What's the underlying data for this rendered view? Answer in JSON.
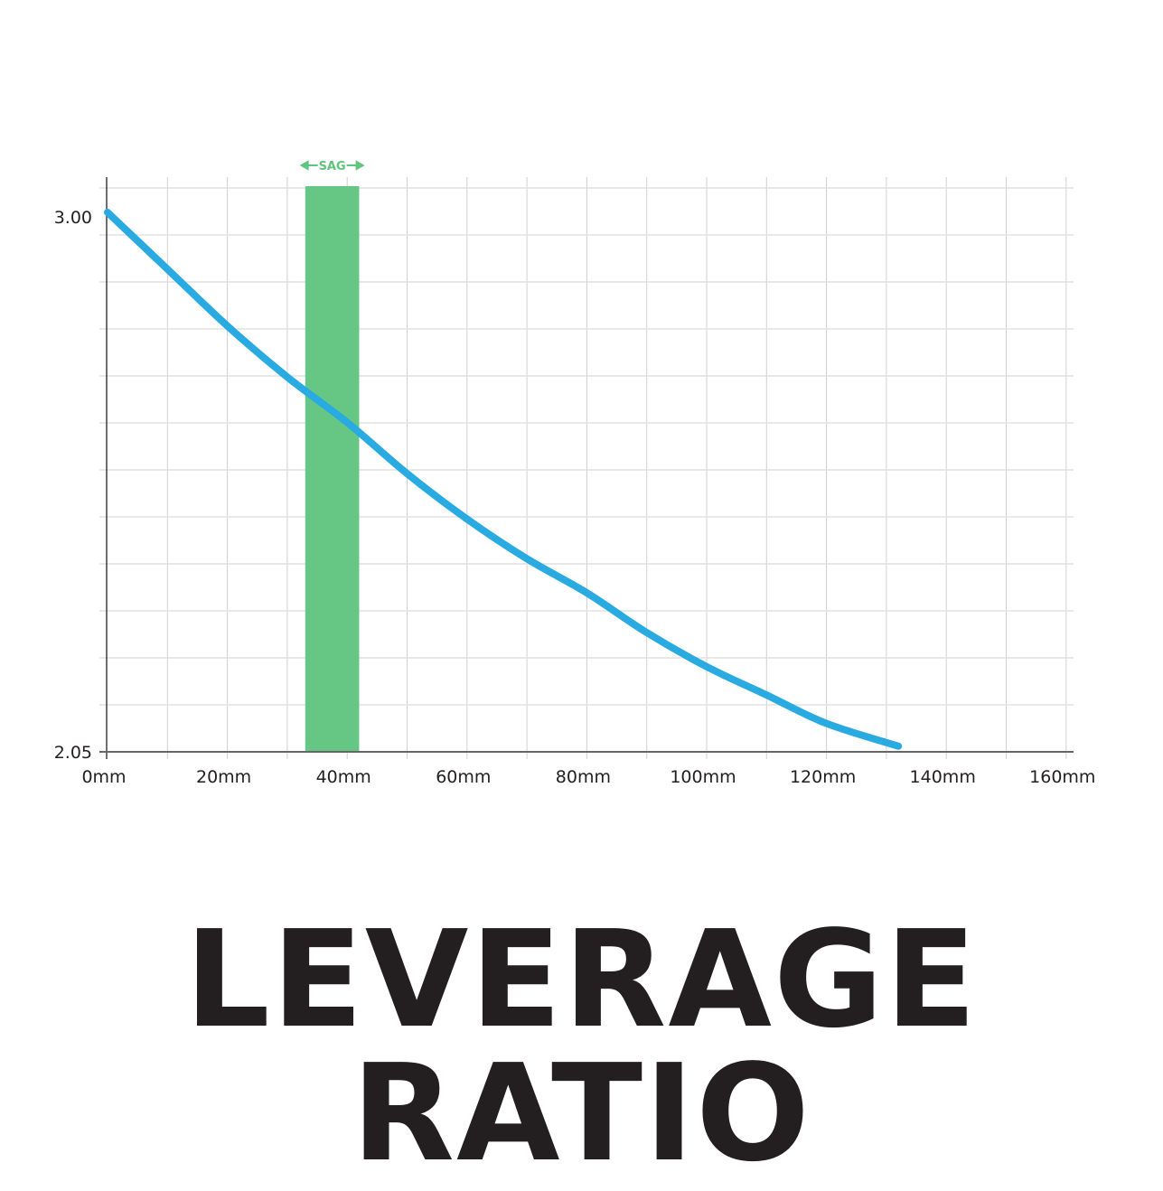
{
  "chart_data": {
    "type": "line",
    "title": "LEVERAGE RATIO",
    "xlabel": "",
    "ylabel": "",
    "xlim": [
      0,
      160
    ],
    "ylim": [
      2.05,
      3.0
    ],
    "x_ticks": [
      "0mm",
      "20mm",
      "40mm",
      "60mm",
      "80mm",
      "100mm",
      "120mm",
      "140mm",
      "160mm"
    ],
    "x_tick_values": [
      0,
      20,
      40,
      60,
      80,
      100,
      120,
      140,
      160
    ],
    "y_ticks": [
      "3.00",
      "2.05"
    ],
    "y_tick_values": [
      3.0,
      2.05
    ],
    "grid": true,
    "series": [
      {
        "color": "#29abe2",
        "x": [
          0,
          10,
          20,
          30,
          40,
          50,
          60,
          70,
          80,
          90,
          100,
          110,
          120,
          132
        ],
        "y": [
          3.0,
          2.9,
          2.8,
          2.71,
          2.63,
          2.54,
          2.46,
          2.39,
          2.33,
          2.26,
          2.2,
          2.15,
          2.1,
          2.06
        ]
      }
    ],
    "sag_band": {
      "label": "SAG",
      "x_start": 33,
      "x_end": 42,
      "color": "#5ec47e"
    }
  }
}
